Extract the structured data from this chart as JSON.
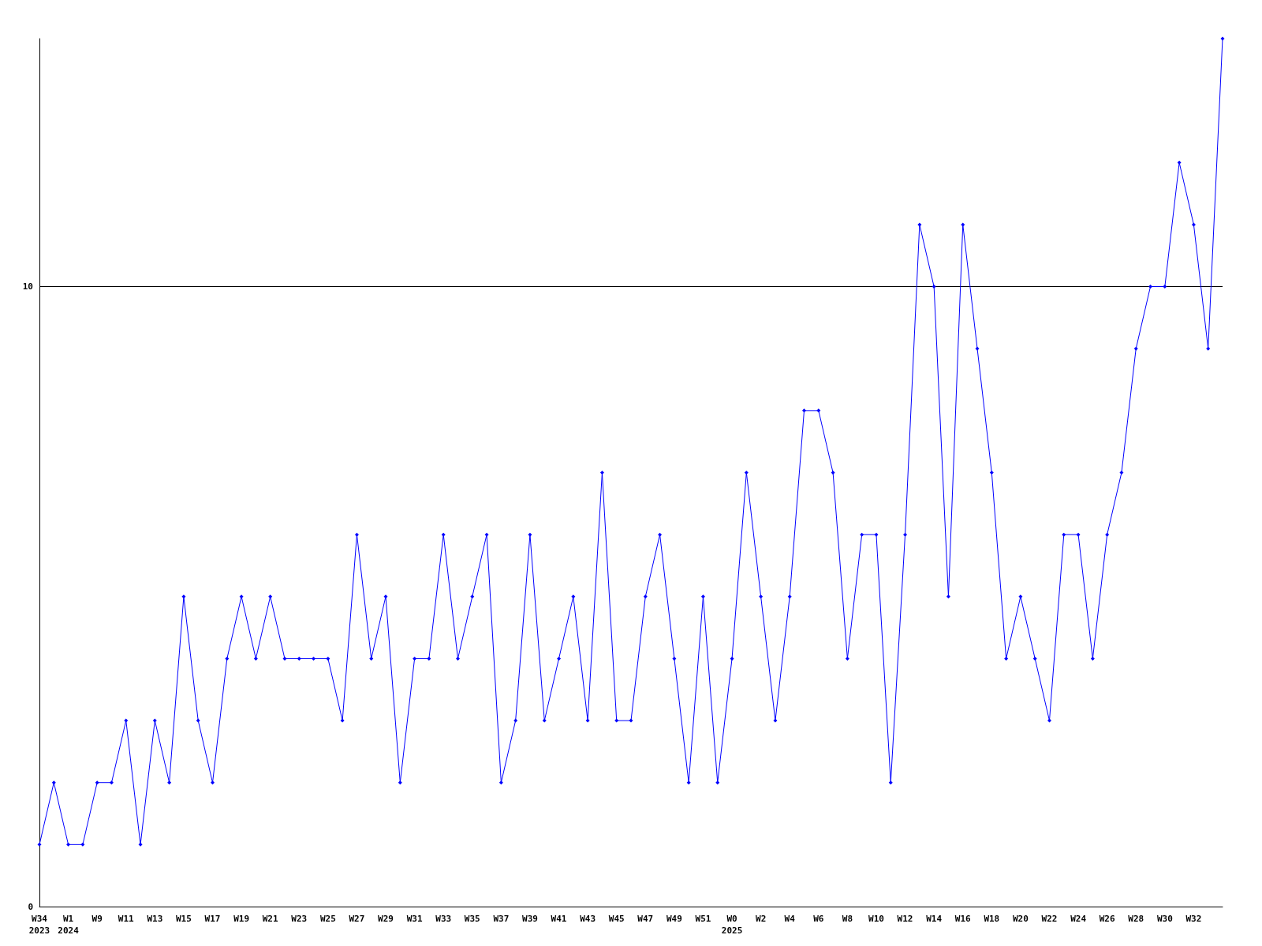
{
  "chart_data": {
    "type": "line",
    "categories": [
      "W34\n2023",
      null,
      "W1\n2024",
      null,
      "W9",
      null,
      "W11",
      null,
      "W13",
      null,
      "W15",
      null,
      "W17",
      null,
      "W19",
      null,
      "W21",
      null,
      "W23",
      null,
      "W25",
      null,
      "W27",
      null,
      "W29",
      null,
      "W31",
      null,
      "W33",
      null,
      "W35",
      null,
      "W37",
      null,
      "W39",
      null,
      "W41",
      null,
      "W43",
      null,
      "W45",
      null,
      "W47",
      null,
      "W49",
      null,
      "W51",
      null,
      "W0\n2025",
      null,
      "W2",
      null,
      "W4",
      null,
      "W6",
      null,
      "W8",
      null,
      "W10",
      null,
      "W12",
      null,
      "W14",
      null,
      "W16",
      null,
      "W18",
      null,
      "W20",
      null,
      "W22",
      null,
      "W24",
      null,
      "W26",
      null,
      "W28",
      null,
      "W30",
      null,
      "W32",
      null,
      null
    ],
    "series": [
      {
        "color": "#0000ff",
        "values": [
          1,
          2,
          1,
          1,
          2,
          2,
          3,
          1,
          3,
          2,
          5,
          3,
          2,
          4,
          5,
          4,
          5,
          4,
          4,
          4,
          4,
          3,
          6,
          4,
          5,
          2,
          4,
          4,
          6,
          4,
          5,
          6,
          2,
          3,
          6,
          3,
          4,
          5,
          3,
          7,
          3,
          3,
          5,
          6,
          4,
          2,
          5,
          2,
          4,
          7,
          5,
          3,
          5,
          8,
          8,
          7,
          4,
          6,
          6,
          2,
          6,
          11,
          10,
          5,
          11,
          9,
          7,
          4,
          5,
          4,
          3,
          6,
          6,
          4,
          6,
          7,
          9,
          10,
          10,
          12,
          11,
          9,
          14
        ]
      }
    ],
    "ylim": [
      0,
      14
    ],
    "yticks": [
      0,
      10
    ],
    "grid": "y",
    "marker": "diamond",
    "line_style": "solid"
  }
}
